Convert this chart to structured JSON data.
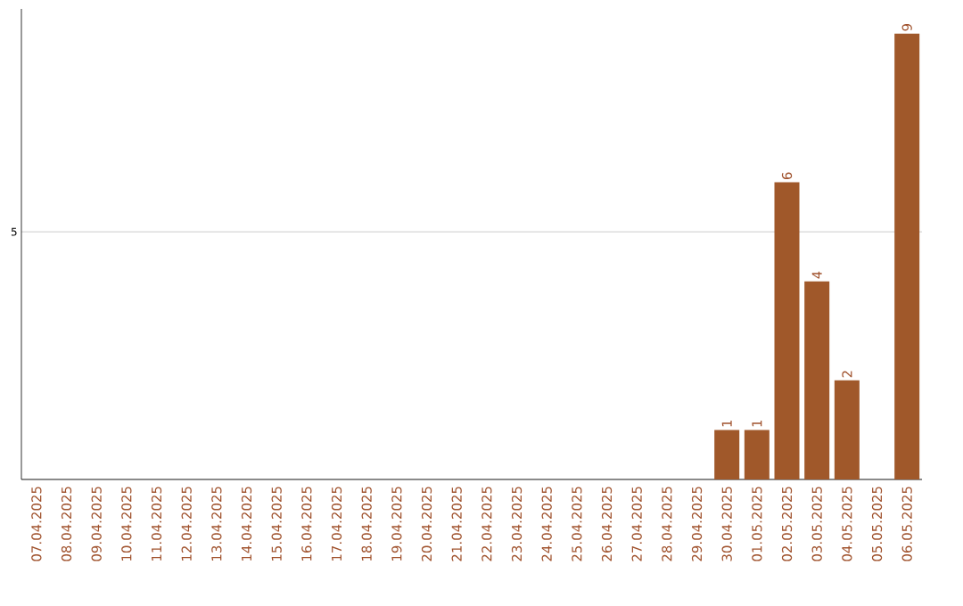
{
  "chart_data": {
    "type": "bar",
    "categories": [
      "07.04.2025",
      "08.04.2025",
      "09.04.2025",
      "10.04.2025",
      "11.04.2025",
      "12.04.2025",
      "13.04.2025",
      "14.04.2025",
      "15.04.2025",
      "16.04.2025",
      "17.04.2025",
      "18.04.2025",
      "19.04.2025",
      "20.04.2025",
      "21.04.2025",
      "22.04.2025",
      "23.04.2025",
      "24.04.2025",
      "25.04.2025",
      "26.04.2025",
      "27.04.2025",
      "28.04.2025",
      "29.04.2025",
      "30.04.2025",
      "01.05.2025",
      "02.05.2025",
      "03.05.2025",
      "04.05.2025",
      "05.05.2025",
      "06.05.2025"
    ],
    "values": [
      null,
      null,
      null,
      null,
      null,
      null,
      null,
      null,
      null,
      null,
      null,
      null,
      null,
      null,
      null,
      null,
      null,
      null,
      null,
      null,
      null,
      null,
      null,
      1,
      1,
      6,
      4,
      2,
      null,
      9
    ],
    "value_labels": [
      null,
      null,
      null,
      null,
      null,
      null,
      null,
      null,
      null,
      null,
      null,
      null,
      null,
      null,
      null,
      null,
      null,
      null,
      null,
      null,
      null,
      null,
      null,
      "1",
      "1",
      "6",
      "4",
      "2",
      null,
      "9"
    ],
    "color": "#a0582a",
    "ylim": [
      0,
      9.5
    ],
    "yticks": [
      {
        "value": 0,
        "label": null
      },
      5
    ],
    "grid": "y"
  }
}
